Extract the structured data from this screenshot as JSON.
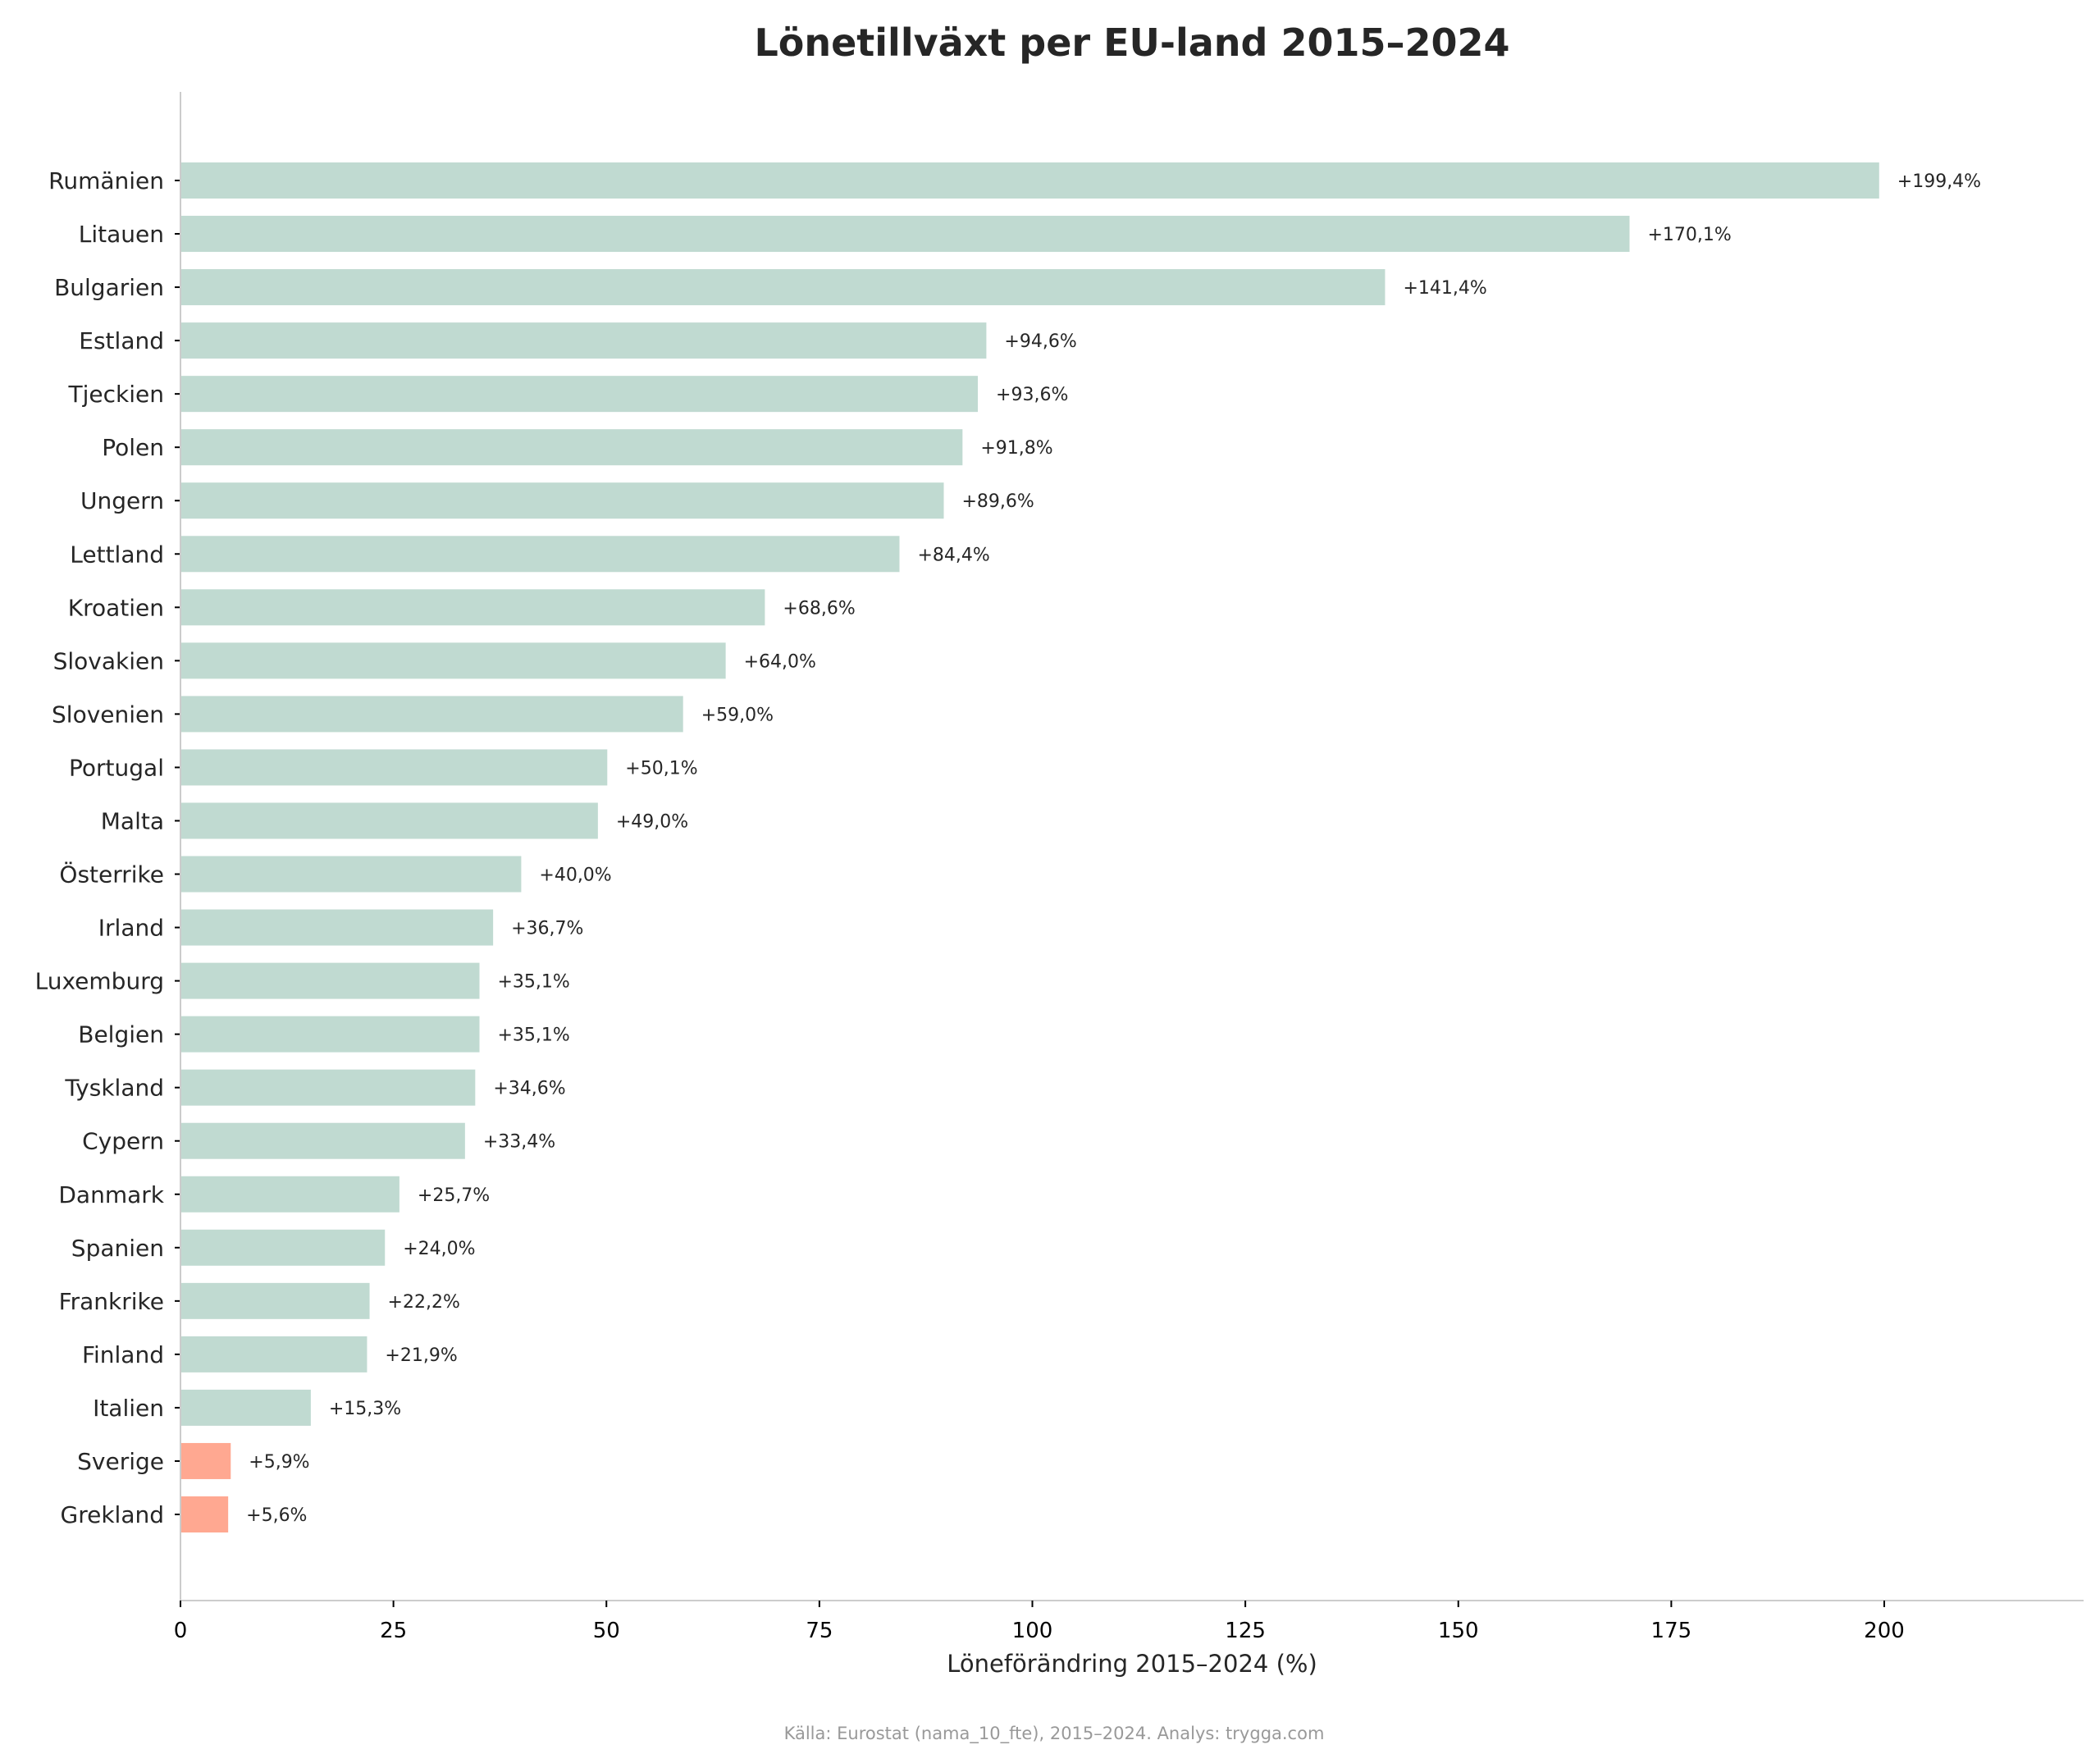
{
  "chart_data": {
    "type": "bar",
    "orientation": "horizontal",
    "title": "Lönetillväxt per EU-land 2015–2024",
    "xlabel": "Löneförändring 2015–2024 (%)",
    "ylabel": "",
    "xlim": [
      0,
      223
    ],
    "xticks": [
      0,
      25,
      50,
      75,
      100,
      125,
      150,
      175,
      200
    ],
    "grid": false,
    "categories": [
      "Rumänien",
      "Litauen",
      "Bulgarien",
      "Estland",
      "Tjeckien",
      "Polen",
      "Ungern",
      "Lettland",
      "Kroatien",
      "Slovakien",
      "Slovenien",
      "Portugal",
      "Malta",
      "Österrike",
      "Irland",
      "Luxemburg",
      "Belgien",
      "Tyskland",
      "Cypern",
      "Danmark",
      "Spanien",
      "Frankrike",
      "Finland",
      "Italien",
      "Sverige",
      "Grekland"
    ],
    "values": [
      199.4,
      170.1,
      141.4,
      94.6,
      93.6,
      91.8,
      89.6,
      84.4,
      68.6,
      64.0,
      59.0,
      50.1,
      49.0,
      40.0,
      36.7,
      35.1,
      35.1,
      34.6,
      33.4,
      25.7,
      24.0,
      22.2,
      21.9,
      15.3,
      5.9,
      5.6
    ],
    "labels": [
      "+199,4%",
      "+170,1%",
      "+141,4%",
      "+94,6%",
      "+93,6%",
      "+91,8%",
      "+89,6%",
      "+84,4%",
      "+68,6%",
      "+64,0%",
      "+59,0%",
      "+50,1%",
      "+49,0%",
      "+40,0%",
      "+36,7%",
      "+35,1%",
      "+35,1%",
      "+34,6%",
      "+33,4%",
      "+25,7%",
      "+24,0%",
      "+22,2%",
      "+21,9%",
      "+15,3%",
      "+5,9%",
      "+5,6%"
    ],
    "highlighted": [
      "Sverige",
      "Grekland"
    ],
    "colors": {
      "default": "#c0dad1",
      "highlight": "#ffa891",
      "axis": "#cccccc"
    },
    "source": "Källa: Eurostat (nama_10_fte), 2015–2024. Analys: trygga.com"
  }
}
